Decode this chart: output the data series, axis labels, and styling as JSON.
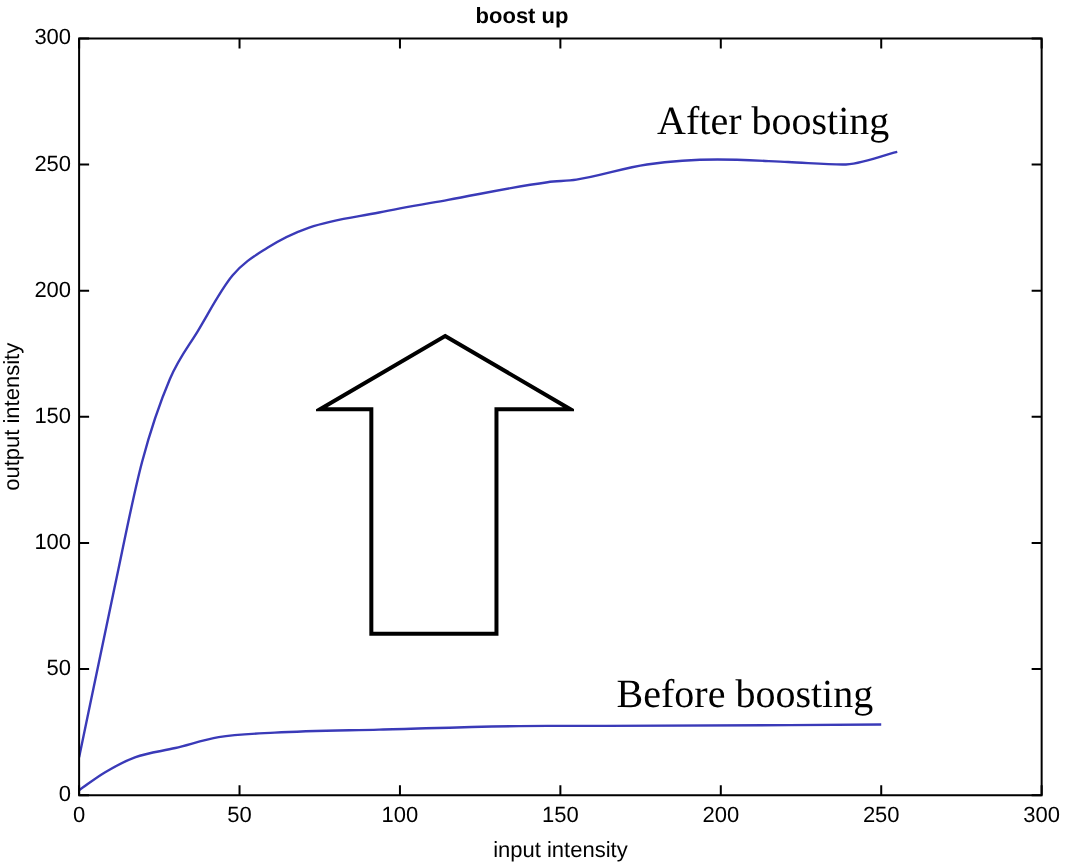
{
  "chart_data": {
    "type": "line",
    "title": "boost up",
    "xlabel": "input intensity",
    "ylabel": "output intensity",
    "xlim": [
      0,
      300
    ],
    "xticks": [
      0,
      50,
      100,
      150,
      200,
      250,
      300
    ],
    "ylim": [
      0,
      300
    ],
    "yticks": [
      0,
      50,
      100,
      150,
      200,
      250,
      300
    ],
    "grid": false,
    "legend": false,
    "marker": "none",
    "line_style": "solid",
    "series": [
      {
        "name": "After boosting",
        "color": "#3a3ab8",
        "x": [
          0,
          11,
          19.6,
          28.3,
          37,
          47.8,
          58.7,
          71.7,
          93.5,
          115,
          146,
          155,
          177,
          199,
          221,
          238,
          255
        ],
        "values": [
          15,
          82,
          132,
          165,
          184,
          206,
          217,
          225,
          231,
          236,
          243,
          244,
          250,
          252,
          251,
          250,
          255
        ]
      },
      {
        "name": "Before boosting",
        "color": "#3a3ab8",
        "x": [
          0,
          8,
          17.4,
          30,
          43.5,
          61,
          93.5,
          146,
          164,
          250
        ],
        "values": [
          2,
          9,
          15,
          18.7,
          23,
          24.8,
          26,
          27.5,
          27.5,
          28
        ]
      }
    ]
  }
}
